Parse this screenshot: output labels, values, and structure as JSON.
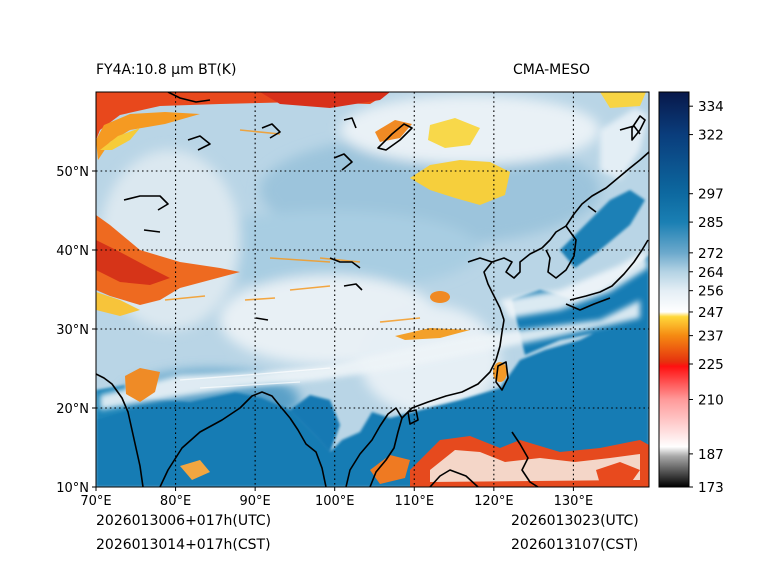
{
  "title_left": "FY4A:10.8 µm BT(K)",
  "title_right": "CMA-MESO",
  "footer": {
    "init_utc": "2026013006+017h(UTC)",
    "init_cst": "2026013014+017h(CST)",
    "valid_utc": "2026013023(UTC)",
    "valid_cst": "2026013107(CST)"
  },
  "map": {
    "lon_range": [
      70,
      139.5
    ],
    "lat_range": [
      10,
      60
    ],
    "lon_ticks": [
      70,
      80,
      90,
      100,
      110,
      120,
      130
    ],
    "lon_labels": [
      "70°E",
      "80°E",
      "90°E",
      "100°E",
      "110°E",
      "120°E",
      "130°E"
    ],
    "lat_ticks": [
      10,
      20,
      30,
      40,
      50
    ],
    "lat_labels": [
      "10°N",
      "20°N",
      "30°N",
      "40°N",
      "50°N"
    ]
  },
  "colorbar": {
    "min": 173,
    "max": 340,
    "ticks": [
      173,
      187,
      210,
      225,
      237,
      247,
      256,
      264,
      272,
      285,
      297,
      322,
      334
    ],
    "stops": [
      {
        "v": 173,
        "c": "#000000"
      },
      {
        "v": 186,
        "c": "#a8a8a8"
      },
      {
        "v": 190,
        "c": "#ffffff"
      },
      {
        "v": 210,
        "c": "#ff9a9a"
      },
      {
        "v": 224,
        "c": "#ff1010"
      },
      {
        "v": 226,
        "c": "#e6320e"
      },
      {
        "v": 237,
        "c": "#f58a12"
      },
      {
        "v": 245,
        "c": "#ffd83a"
      },
      {
        "v": 247,
        "c": "#ffffff"
      },
      {
        "v": 256,
        "c": "#e4eef5"
      },
      {
        "v": 264,
        "c": "#b4d3e4"
      },
      {
        "v": 272,
        "c": "#6ca9cc"
      },
      {
        "v": 285,
        "c": "#1a7fb3"
      },
      {
        "v": 297,
        "c": "#0d69a0"
      },
      {
        "v": 322,
        "c": "#0a3d7c"
      },
      {
        "v": 340,
        "c": "#08184a"
      }
    ]
  },
  "colors": {
    "ocean": "#147bb4",
    "land": "#b7d3e3",
    "cloud_white": "#eef4f8",
    "cold_top_red": "#e8401a",
    "orange": "#f5a020",
    "yellow": "#f7d040",
    "coast": "#000000"
  }
}
